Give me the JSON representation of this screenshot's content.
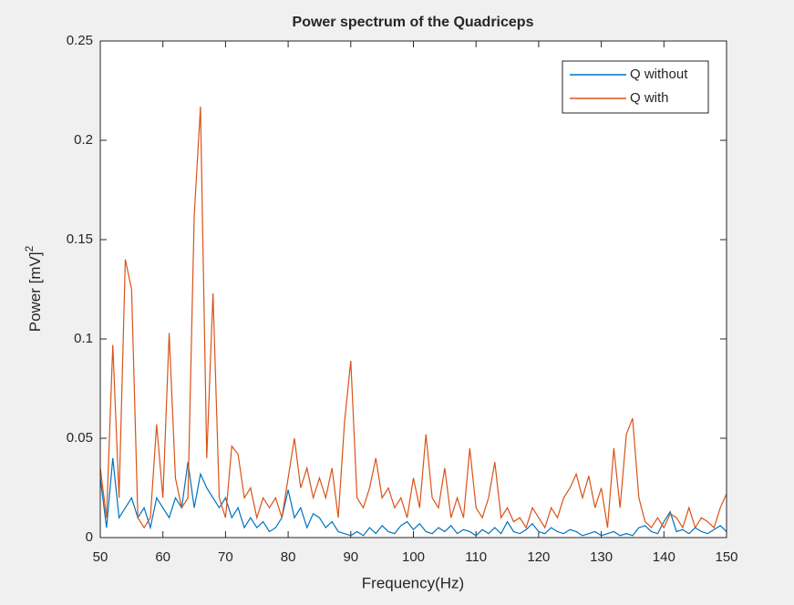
{
  "chart_data": {
    "type": "line",
    "title": "Power spectrum of the Quadriceps",
    "xlabel": "Frequency(Hz)",
    "ylabel": "Power [mV]",
    "ylabel_superscript": "2",
    "x": [
      50,
      51,
      52,
      53,
      54,
      55,
      56,
      57,
      58,
      59,
      60,
      61,
      62,
      63,
      64,
      65,
      66,
      67,
      68,
      69,
      70,
      71,
      72,
      73,
      74,
      75,
      76,
      77,
      78,
      79,
      80,
      81,
      82,
      83,
      84,
      85,
      86,
      87,
      88,
      89,
      90,
      91,
      92,
      93,
      94,
      95,
      96,
      97,
      98,
      99,
      100,
      101,
      102,
      103,
      104,
      105,
      106,
      107,
      108,
      109,
      110,
      111,
      112,
      113,
      114,
      115,
      116,
      117,
      118,
      119,
      120,
      121,
      122,
      123,
      124,
      125,
      126,
      127,
      128,
      129,
      130,
      131,
      132,
      133,
      134,
      135,
      136,
      137,
      138,
      139,
      140,
      141,
      142,
      143,
      144,
      145,
      146,
      147,
      148,
      149,
      150
    ],
    "series": [
      {
        "name": "Q without",
        "color": "#0072bd",
        "values": [
          0.03,
          0.005,
          0.04,
          0.01,
          0.015,
          0.02,
          0.01,
          0.015,
          0.005,
          0.02,
          0.015,
          0.01,
          0.02,
          0.015,
          0.038,
          0.015,
          0.032,
          0.025,
          0.02,
          0.015,
          0.02,
          0.01,
          0.015,
          0.005,
          0.01,
          0.005,
          0.008,
          0.003,
          0.005,
          0.01,
          0.024,
          0.01,
          0.015,
          0.005,
          0.012,
          0.01,
          0.005,
          0.008,
          0.003,
          0.002,
          0.001,
          0.003,
          0.001,
          0.005,
          0.002,
          0.006,
          0.003,
          0.002,
          0.006,
          0.008,
          0.004,
          0.007,
          0.003,
          0.002,
          0.005,
          0.003,
          0.006,
          0.002,
          0.004,
          0.003,
          0.001,
          0.004,
          0.002,
          0.005,
          0.002,
          0.008,
          0.003,
          0.002,
          0.004,
          0.007,
          0.003,
          0.002,
          0.005,
          0.003,
          0.002,
          0.004,
          0.003,
          0.001,
          0.002,
          0.003,
          0.001,
          0.002,
          0.003,
          0.001,
          0.002,
          0.001,
          0.005,
          0.006,
          0.003,
          0.002,
          0.008,
          0.013,
          0.003,
          0.004,
          0.002,
          0.005,
          0.003,
          0.002,
          0.004,
          0.006,
          0.003
        ]
      },
      {
        "name": "Q with",
        "color": "#d95319",
        "values": [
          0.035,
          0.01,
          0.097,
          0.02,
          0.14,
          0.125,
          0.01,
          0.005,
          0.01,
          0.057,
          0.02,
          0.103,
          0.03,
          0.015,
          0.02,
          0.162,
          0.217,
          0.04,
          0.123,
          0.02,
          0.01,
          0.046,
          0.042,
          0.02,
          0.025,
          0.01,
          0.02,
          0.015,
          0.02,
          0.01,
          0.03,
          0.05,
          0.025,
          0.035,
          0.02,
          0.03,
          0.02,
          0.035,
          0.01,
          0.058,
          0.089,
          0.02,
          0.015,
          0.025,
          0.04,
          0.02,
          0.025,
          0.015,
          0.02,
          0.01,
          0.03,
          0.015,
          0.052,
          0.02,
          0.015,
          0.035,
          0.01,
          0.02,
          0.01,
          0.045,
          0.015,
          0.01,
          0.02,
          0.038,
          0.01,
          0.015,
          0.008,
          0.01,
          0.005,
          0.015,
          0.01,
          0.005,
          0.015,
          0.01,
          0.02,
          0.025,
          0.032,
          0.02,
          0.031,
          0.015,
          0.025,
          0.005,
          0.045,
          0.015,
          0.052,
          0.06,
          0.02,
          0.008,
          0.005,
          0.01,
          0.005,
          0.012,
          0.01,
          0.005,
          0.015,
          0.005,
          0.01,
          0.008,
          0.005,
          0.015,
          0.022
        ]
      }
    ],
    "xlim": [
      50,
      150
    ],
    "xticks": [
      50,
      60,
      70,
      80,
      90,
      100,
      110,
      120,
      130,
      140,
      150
    ],
    "ylim": [
      0,
      0.25
    ],
    "yticks": [
      0,
      0.05,
      0.1,
      0.15,
      0.2,
      0.25
    ],
    "legend": "upper right"
  }
}
